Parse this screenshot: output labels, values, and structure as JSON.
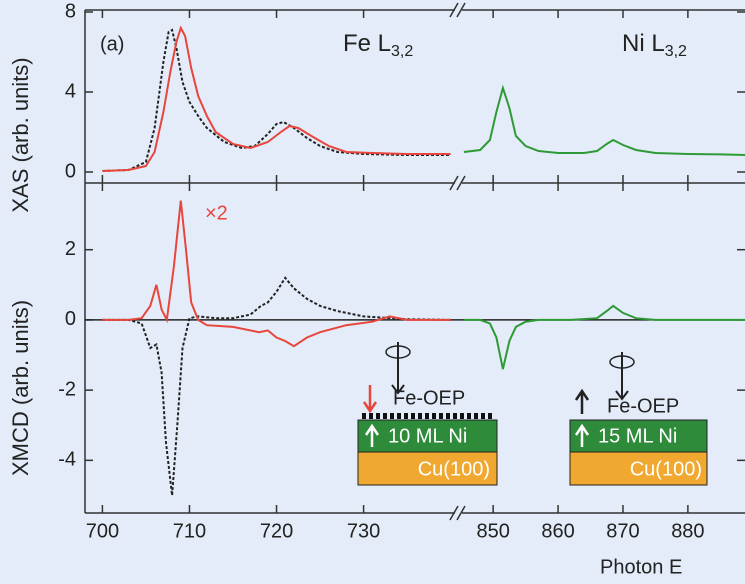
{
  "chart_data": [
    {
      "type": "line",
      "ylabel": "XAS (arb. units)",
      "xlim": [
        698,
        888.8
      ],
      "xbreak": [
        740.5,
        845.2
      ],
      "ylim": [
        -0.55,
        8.1
      ],
      "yticks": [
        0,
        4,
        8
      ],
      "annotations": [
        {
          "text": "(a)"
        },
        {
          "text": "Fe L",
          "sub": "3,2"
        },
        {
          "text": "Ni L",
          "sub": "3,2"
        }
      ],
      "series": [
        {
          "color": "#222222",
          "dash": true,
          "x": [
            700,
            703,
            705,
            706,
            707,
            707.6,
            708,
            708.5,
            709.2,
            710,
            711,
            712,
            714,
            716,
            717.5,
            719,
            720,
            720.8,
            722,
            723.5,
            725,
            727,
            730,
            735,
            740
          ],
          "values": [
            0.05,
            0.1,
            0.5,
            2.2,
            5.5,
            7.0,
            7.1,
            6.2,
            4.5,
            3.5,
            2.8,
            2.2,
            1.5,
            1.2,
            1.3,
            1.9,
            2.4,
            2.5,
            2.2,
            1.7,
            1.3,
            1.0,
            0.9,
            0.85,
            0.85
          ]
        },
        {
          "color": "#e8453c",
          "dash": false,
          "x": [
            700,
            703,
            705,
            706,
            707,
            707.8,
            708.5,
            709,
            709.5,
            710.2,
            711,
            712,
            713,
            715,
            717,
            719,
            720.5,
            721.5,
            722.5,
            724,
            726,
            728,
            731,
            735,
            740
          ],
          "values": [
            0.05,
            0.1,
            0.3,
            1.0,
            3.0,
            5.0,
            6.5,
            7.2,
            6.8,
            5.2,
            3.8,
            2.8,
            2.0,
            1.4,
            1.2,
            1.5,
            2.0,
            2.3,
            2.2,
            1.8,
            1.3,
            1.0,
            0.95,
            0.9,
            0.9
          ]
        },
        {
          "color": "#2e9a36",
          "dash": false,
          "x": [
            845.5,
            848,
            849.5,
            850.5,
            851.5,
            852.5,
            853.5,
            855,
            857,
            860,
            864,
            866,
            867.5,
            868.5,
            870,
            872,
            875,
            880,
            885,
            888.8
          ],
          "values": [
            1.0,
            1.1,
            1.6,
            3.0,
            4.2,
            3.2,
            1.8,
            1.3,
            1.05,
            0.95,
            0.95,
            1.05,
            1.4,
            1.6,
            1.35,
            1.1,
            0.95,
            0.9,
            0.88,
            0.85
          ]
        }
      ]
    },
    {
      "type": "line",
      "ylabel": "XMCD (arb. units)",
      "xlabel": "Photon E",
      "xlim": [
        698,
        888.8
      ],
      "xbreak": [
        740.5,
        845.2
      ],
      "xticks": [
        700,
        710,
        720,
        730,
        850,
        860,
        870,
        880
      ],
      "ylim": [
        -5.5,
        3.9
      ],
      "yticks": [
        -4,
        -2,
        0,
        2
      ],
      "annotations": [
        {
          "text": "×2"
        },
        {
          "text": "Fe-OEP"
        },
        {
          "text": "10 ML Ni"
        },
        {
          "text": "Cu(100)"
        },
        {
          "text": "Fe-OEP"
        },
        {
          "text": "15 ML Ni"
        },
        {
          "text": "Cu(100)"
        }
      ],
      "series": [
        {
          "color": "#222222",
          "dash": true,
          "x": [
            700,
            703,
            704.5,
            705.5,
            706.2,
            706.8,
            707.3,
            708,
            708.6,
            709.2,
            710,
            711,
            713,
            715,
            717,
            718.2,
            719,
            720,
            721,
            722,
            723.5,
            725,
            727,
            730,
            735,
            740
          ],
          "values": [
            0,
            0,
            -0.1,
            -0.8,
            -0.7,
            -1.5,
            -3.5,
            -5.0,
            -3.0,
            -0.8,
            0.05,
            0.1,
            0.05,
            0.05,
            0.15,
            0.4,
            0.5,
            0.8,
            1.2,
            0.9,
            0.6,
            0.4,
            0.25,
            0.1,
            0.02,
            0
          ]
        },
        {
          "color": "#e8453c",
          "dash": false,
          "x": [
            700,
            703,
            704.5,
            705.5,
            706.2,
            706.8,
            707.4,
            708.2,
            709,
            709.6,
            710.2,
            711,
            712,
            715,
            718,
            719,
            720,
            721,
            722,
            723.5,
            725,
            728,
            731,
            733,
            735,
            740
          ],
          "values": [
            0,
            0,
            0.05,
            0.4,
            1.0,
            0.3,
            0.0,
            1.5,
            3.4,
            2.0,
            0.5,
            0.0,
            -0.15,
            -0.2,
            -0.35,
            -0.3,
            -0.5,
            -0.6,
            -0.75,
            -0.5,
            -0.35,
            -0.15,
            -0.05,
            0.1,
            0,
            0
          ]
        },
        {
          "color": "#2e9a36",
          "dash": false,
          "x": [
            845.5,
            848,
            849.5,
            850.5,
            851.5,
            852.5,
            853.5,
            855,
            857,
            862,
            866,
            867.5,
            868.5,
            870,
            872,
            875,
            880,
            888.8
          ],
          "values": [
            0,
            0,
            -0.1,
            -0.5,
            -1.4,
            -0.6,
            -0.2,
            -0.05,
            0,
            0,
            0.05,
            0.25,
            0.4,
            0.2,
            0.05,
            0,
            0,
            0
          ]
        }
      ]
    }
  ]
}
